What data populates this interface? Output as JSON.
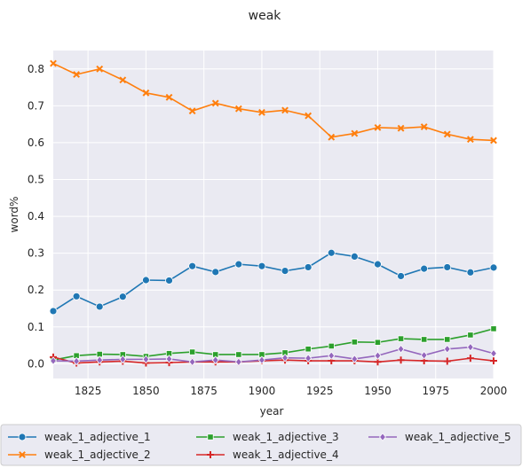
{
  "chart_data": {
    "type": "line",
    "title": "weak",
    "xlabel": "year",
    "ylabel": "word%",
    "xlim": [
      1810,
      2000
    ],
    "ylim": [
      -0.04,
      0.85
    ],
    "x_ticks": [
      1825,
      1850,
      1875,
      1900,
      1925,
      1950,
      1975,
      2000
    ],
    "y_ticks": [
      0.0,
      0.1,
      0.2,
      0.3,
      0.4,
      0.5,
      0.6,
      0.7,
      0.8
    ],
    "grid": true,
    "legend_position": "bottom",
    "x": [
      1810,
      1820,
      1830,
      1840,
      1850,
      1860,
      1870,
      1880,
      1890,
      1900,
      1910,
      1920,
      1930,
      1940,
      1950,
      1960,
      1970,
      1980,
      1990,
      2000
    ],
    "series": [
      {
        "name": "weak_1_adjective_1",
        "color": "#1f77b4",
        "marker": "circle",
        "values": [
          0.143,
          0.183,
          0.155,
          0.182,
          0.227,
          0.226,
          0.265,
          0.249,
          0.27,
          0.265,
          0.252,
          0.262,
          0.301,
          0.291,
          0.27,
          0.238,
          0.258,
          0.262,
          0.248,
          0.261
        ]
      },
      {
        "name": "weak_1_adjective_2",
        "color": "#ff7f0e",
        "marker": "x",
        "values": [
          0.815,
          0.785,
          0.8,
          0.77,
          0.735,
          0.723,
          0.686,
          0.707,
          0.692,
          0.682,
          0.688,
          0.673,
          0.615,
          0.625,
          0.641,
          0.639,
          0.643,
          0.623,
          0.609,
          0.606
        ]
      },
      {
        "name": "weak_1_adjective_3",
        "color": "#2ca02c",
        "marker": "square",
        "values": [
          0.01,
          0.022,
          0.026,
          0.025,
          0.02,
          0.028,
          0.032,
          0.025,
          0.025,
          0.025,
          0.03,
          0.04,
          0.048,
          0.059,
          0.058,
          0.068,
          0.066,
          0.066,
          0.078,
          0.095
        ]
      },
      {
        "name": "weak_1_adjective_4",
        "color": "#d62728",
        "marker": "plus",
        "values": [
          0.018,
          0.002,
          0.005,
          0.007,
          0.002,
          0.003,
          0.005,
          0.005,
          0.005,
          0.008,
          0.01,
          0.008,
          0.008,
          0.008,
          0.005,
          0.01,
          0.008,
          0.007,
          0.015,
          0.008
        ]
      },
      {
        "name": "weak_1_adjective_5",
        "color": "#9467bd",
        "marker": "diamond",
        "values": [
          0.008,
          0.007,
          0.01,
          0.012,
          0.012,
          0.013,
          0.005,
          0.01,
          0.005,
          0.01,
          0.016,
          0.015,
          0.022,
          0.013,
          0.022,
          0.04,
          0.023,
          0.04,
          0.045,
          0.028
        ]
      }
    ]
  }
}
